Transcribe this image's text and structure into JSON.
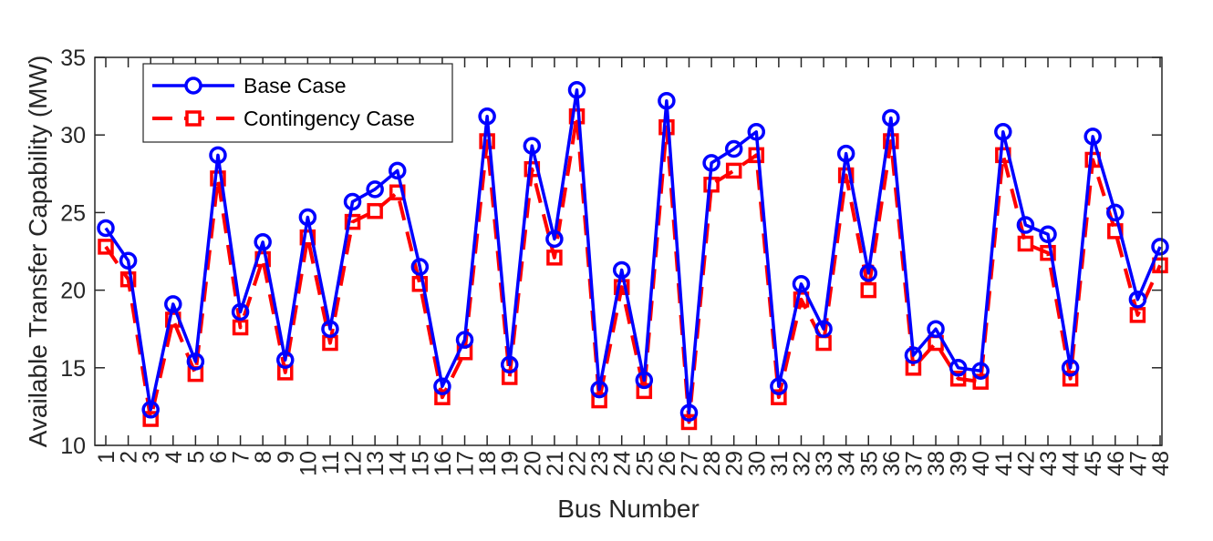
{
  "chart_data": {
    "type": "line",
    "xlabel": "Bus Number",
    "ylabel": "Available Transfer Capability (MW)",
    "xlim": [
      1,
      48
    ],
    "ylim": [
      10,
      35
    ],
    "yticks": [
      10,
      15,
      20,
      25,
      30,
      35
    ],
    "grid": false,
    "legend_position": "top-left",
    "categories": [
      "1",
      "2",
      "3",
      "4",
      "5",
      "6",
      "7",
      "8",
      "9",
      "10",
      "11",
      "12",
      "13",
      "14",
      "15",
      "16",
      "17",
      "18",
      "19",
      "20",
      "21",
      "22",
      "23",
      "24",
      "25",
      "26",
      "27",
      "28",
      "29",
      "30",
      "31",
      "32",
      "33",
      "34",
      "35",
      "36",
      "37",
      "38",
      "39",
      "40",
      "41",
      "42",
      "43",
      "44",
      "45",
      "46",
      "47",
      "48"
    ],
    "series": [
      {
        "name": "Base Case",
        "color": "#0000ff",
        "marker": "circle",
        "line_style": "solid",
        "values": [
          24.0,
          21.9,
          12.3,
          19.1,
          15.4,
          28.7,
          18.6,
          23.1,
          15.5,
          24.7,
          17.5,
          25.7,
          26.5,
          27.7,
          21.5,
          13.8,
          16.8,
          31.2,
          15.2,
          29.3,
          23.3,
          32.9,
          13.6,
          21.3,
          14.2,
          32.2,
          12.1,
          28.2,
          29.1,
          30.2,
          13.8,
          20.4,
          17.5,
          28.8,
          21.1,
          31.1,
          15.8,
          17.5,
          15.0,
          14.8,
          30.2,
          24.2,
          23.6,
          15.0,
          29.9,
          25.0,
          19.4,
          22.8
        ]
      },
      {
        "name": "Contingency Case",
        "color": "#ff0000",
        "marker": "square",
        "line_style": "dashed",
        "values": [
          22.8,
          20.7,
          11.7,
          18.1,
          14.6,
          27.2,
          17.6,
          22.0,
          14.7,
          23.4,
          16.6,
          24.4,
          25.1,
          26.3,
          20.4,
          13.1,
          16.0,
          29.6,
          14.4,
          27.8,
          22.1,
          31.2,
          12.9,
          20.2,
          13.5,
          30.5,
          11.5,
          26.8,
          27.7,
          28.7,
          13.1,
          19.4,
          16.6,
          27.4,
          20.0,
          29.6,
          15.0,
          16.6,
          14.3,
          14.1,
          28.7,
          23.0,
          22.4,
          14.3,
          28.4,
          23.8,
          18.4,
          21.6
        ]
      }
    ]
  }
}
